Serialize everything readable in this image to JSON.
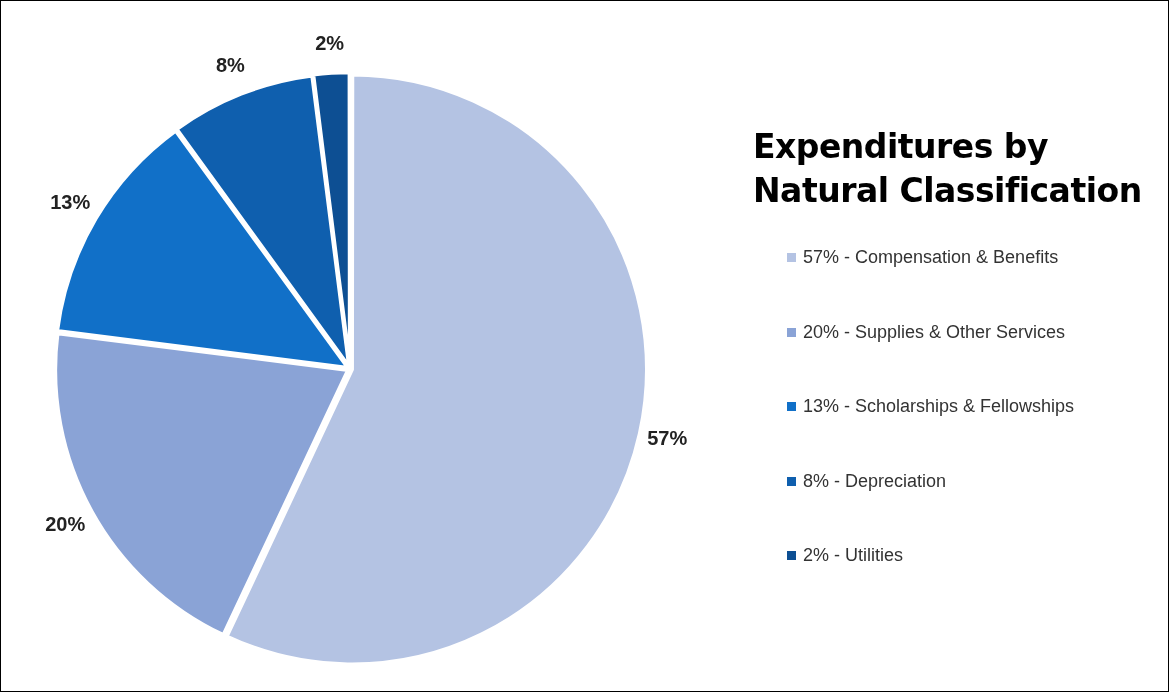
{
  "chart_data": {
    "type": "pie",
    "title": "Expenditures by Natural Classification",
    "categories": [
      "57% - Compensation & Benefits",
      "20% - Supplies & Other Services",
      "13% - Scholarships & Fellowships",
      "8% - Depreciation",
      "2% - Utilities"
    ],
    "values": [
      57,
      20,
      13,
      8,
      2
    ],
    "colors": [
      "#b4c3e3",
      "#8aa3d6",
      "#1170c8",
      "#0f5fae",
      "#0d4f93"
    ],
    "value_labels": [
      "57%",
      "20%",
      "13%",
      "8%",
      "2%"
    ],
    "legend": "right"
  }
}
